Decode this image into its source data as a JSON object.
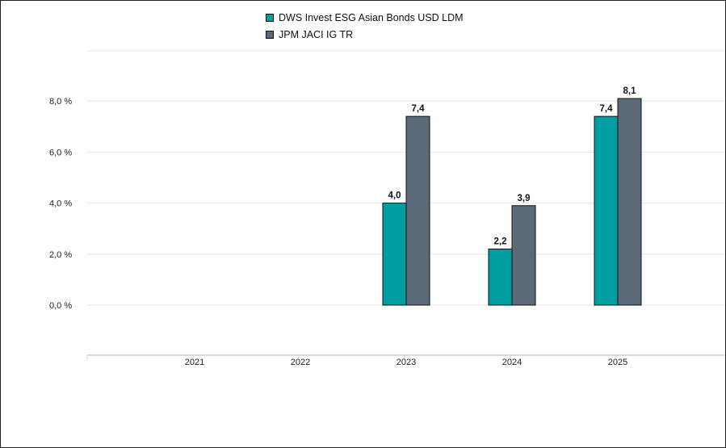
{
  "chart_data": {
    "type": "bar",
    "categories": [
      "2021",
      "2022",
      "2023",
      "2024",
      "2025"
    ],
    "series": [
      {
        "name": "DWS Invest ESG Asian Bonds USD LDM",
        "color": "#009ea0",
        "values": [
          null,
          null,
          4.0,
          2.2,
          7.4
        ],
        "labels": [
          "",
          "",
          "4,0",
          "2,2",
          "7,4"
        ]
      },
      {
        "name": "JPM JACI IG TR",
        "color": "#5a6a78",
        "values": [
          null,
          null,
          7.4,
          3.9,
          8.1
        ],
        "labels": [
          "",
          "",
          "7,4",
          "3,9",
          "8,1"
        ]
      }
    ],
    "yticks": [
      0,
      2,
      4,
      6,
      8
    ],
    "ytick_labels": [
      "0,0 %",
      "2,0 %",
      "4,0 %",
      "6,0 %",
      "8,0 %"
    ],
    "ylim": [
      -2,
      10
    ],
    "legend_position": "top-center",
    "grid": true
  }
}
